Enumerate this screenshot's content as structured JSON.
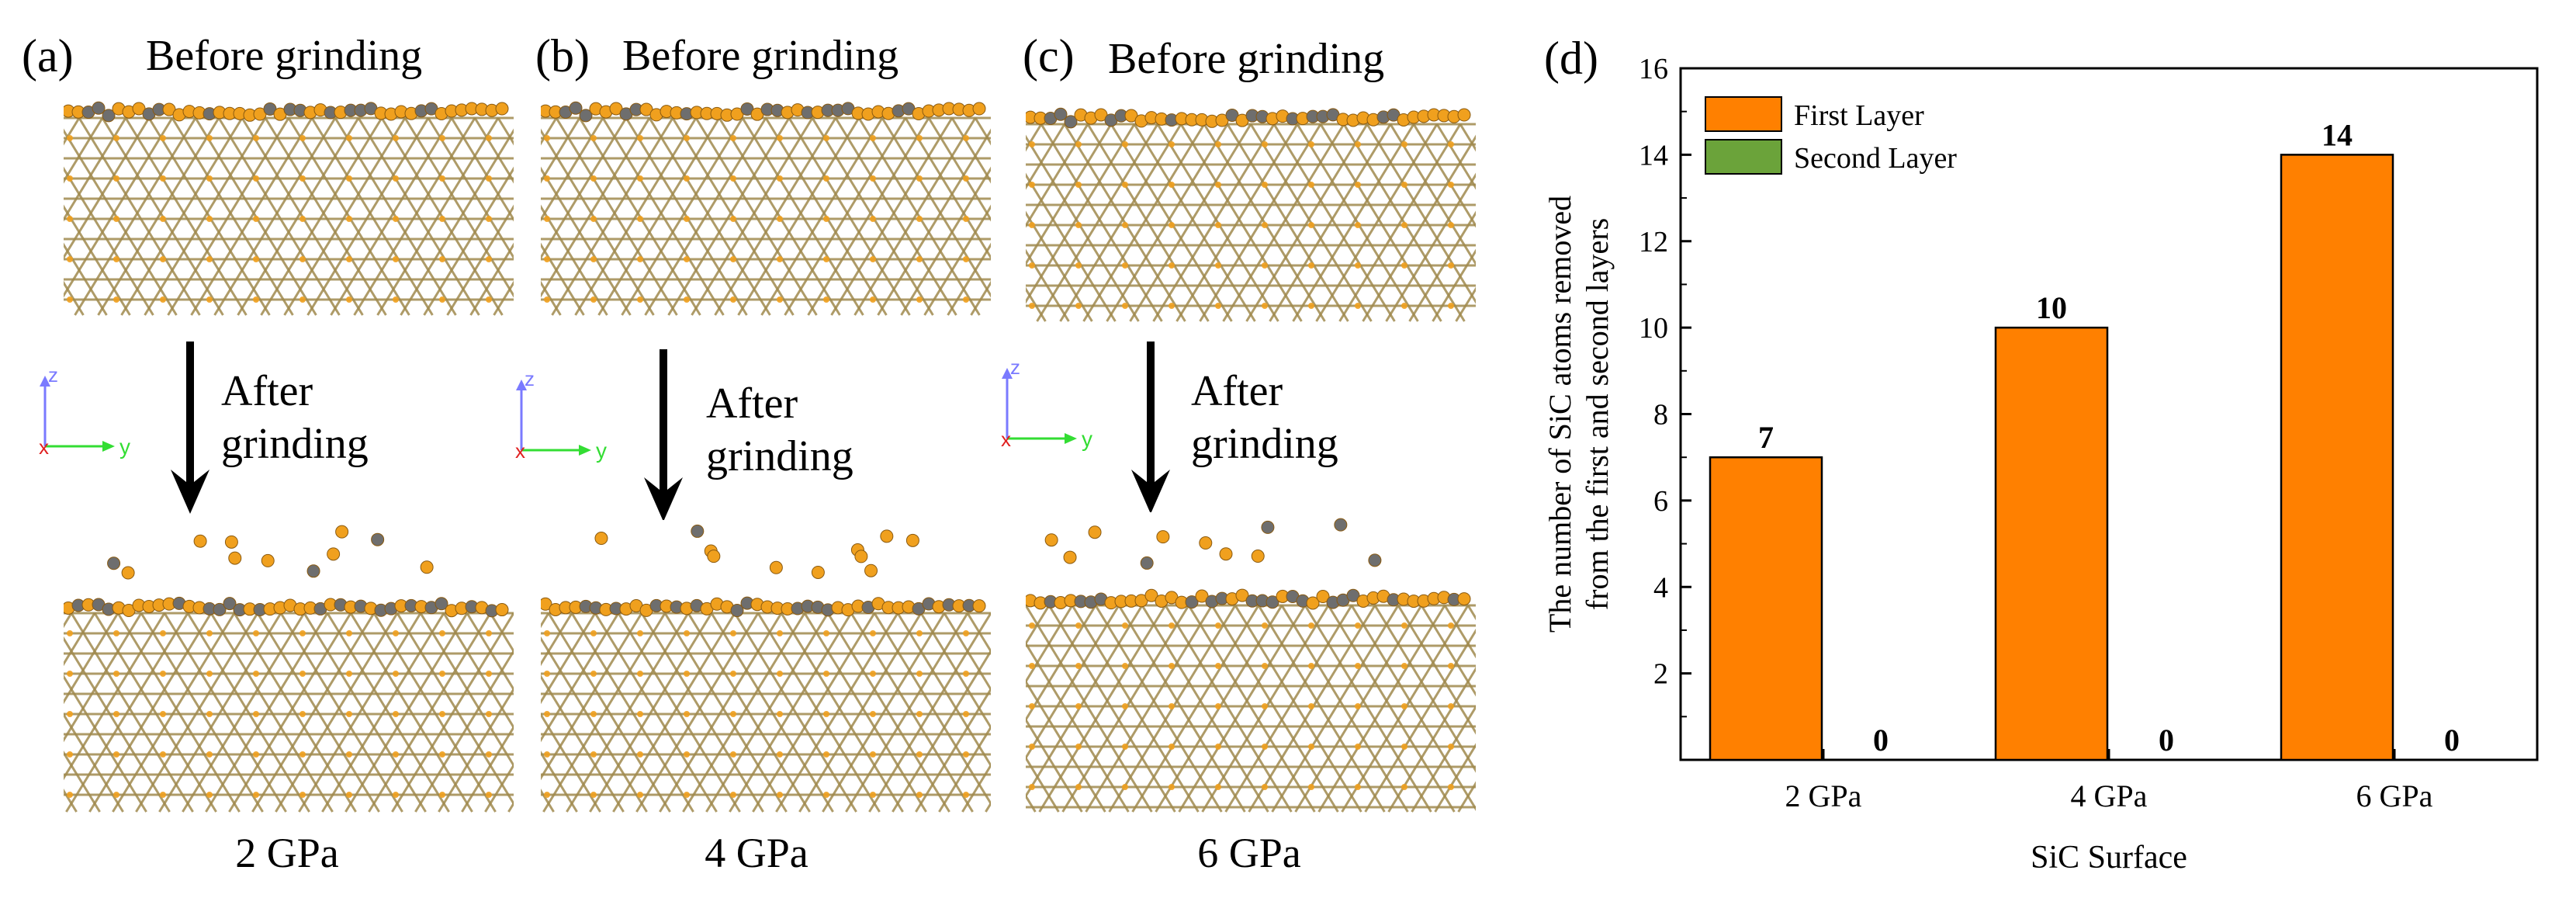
{
  "panels": [
    {
      "letter": "(a)",
      "before": "Before grinding",
      "after": "After\ngrinding",
      "after_line1": "After",
      "after_line2": "grinding",
      "pressure": "2 GPa"
    },
    {
      "letter": "(b)",
      "before": "Before grinding",
      "after_line1": "After",
      "after_line2": "grinding",
      "pressure": "4 GPa"
    },
    {
      "letter": "(c)",
      "before": "Before grinding",
      "after_line1": "After",
      "after_line2": "grinding",
      "pressure": "6 GPa"
    }
  ],
  "axes_labels": {
    "z": "z",
    "x": "x",
    "y": "y"
  },
  "colors": {
    "si": "#f0a01e",
    "c": "#6e6e6e",
    "bond": "#a08a4e",
    "first_layer": "#ff8000",
    "second_layer": "#6ba33a"
  },
  "chart_letter": "(d)",
  "chart_data": {
    "type": "bar",
    "categories": [
      "2 GPa",
      "4 GPa",
      "6 GPa"
    ],
    "series": [
      {
        "name": "First Layer",
        "values": [
          7,
          10,
          14
        ]
      },
      {
        "name": "Second Layer",
        "values": [
          0,
          0,
          0
        ]
      }
    ],
    "data_labels": [
      "7",
      "0",
      "10",
      "0",
      "14",
      "0"
    ],
    "title": "",
    "xlabel": "SiC Surface",
    "ylabel_line1": "The number of SiC atoms removed",
    "ylabel_line2": "from the first and second layers",
    "ylim": [
      0,
      16
    ],
    "yticks": [
      "2",
      "4",
      "6",
      "8",
      "10",
      "12",
      "14",
      "16"
    ],
    "legend_position": "top-left"
  }
}
